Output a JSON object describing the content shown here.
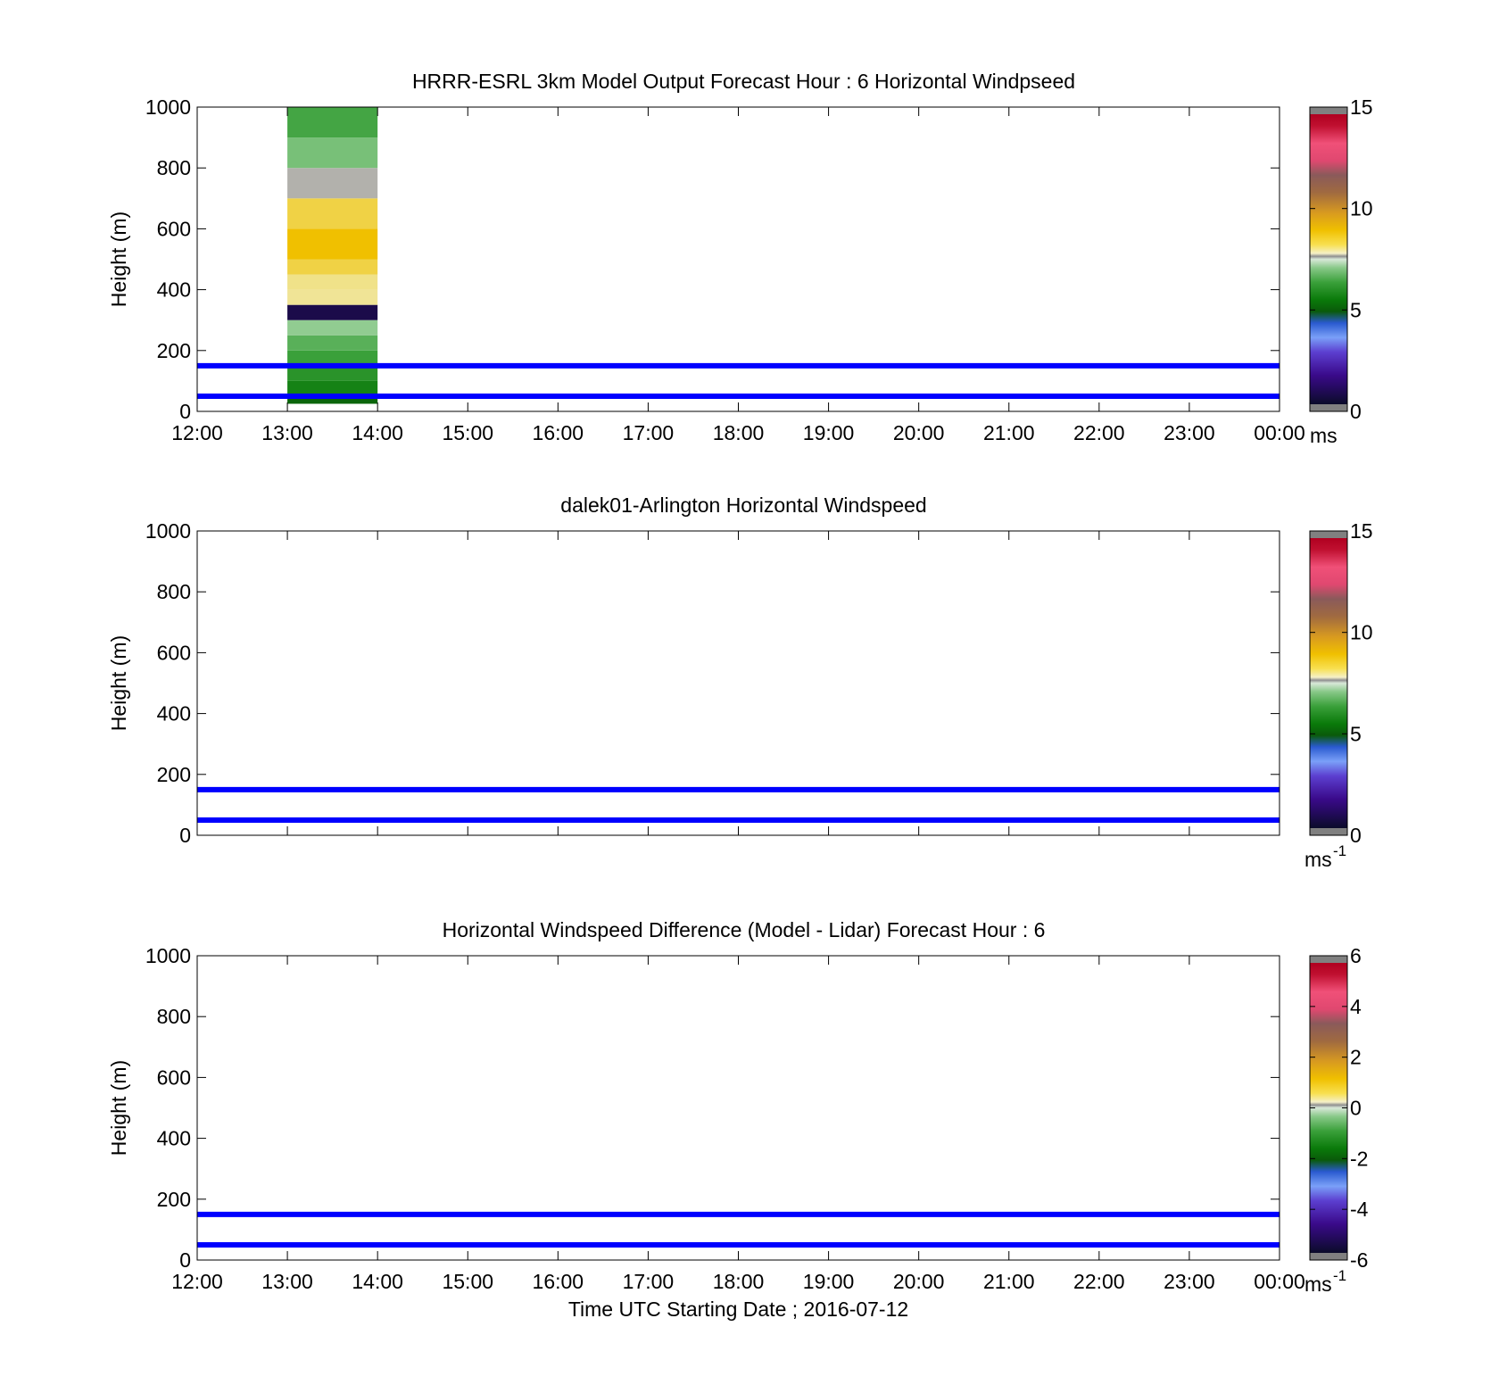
{
  "chart_data": [
    {
      "type": "heatmap",
      "title": "HRRR-ESRL 3km Model Output   Forecast Hour : 6 Horizontal Windpseed",
      "xlabel": "",
      "ylabel": "Height (m)",
      "x_ticks": [
        "12:00",
        "13:00",
        "14:00",
        "15:00",
        "16:00",
        "17:00",
        "18:00",
        "19:00",
        "20:00",
        "21:00",
        "22:00",
        "23:00",
        "00:00"
      ],
      "x_range_hours": [
        12,
        24
      ],
      "ylim": [
        0,
        1000
      ],
      "y_ticks": [
        0,
        200,
        400,
        600,
        800,
        1000
      ],
      "colorbar": {
        "range": [
          0,
          15
        ],
        "ticks": [
          0,
          5,
          10,
          15
        ],
        "label": "ms"
      },
      "cells": [
        {
          "x0": 13,
          "x1": 14,
          "y0": 25,
          "y1": 50,
          "value": 5.0
        },
        {
          "x0": 13,
          "x1": 14,
          "y0": 50,
          "y1": 100,
          "value": 5.6
        },
        {
          "x0": 13,
          "x1": 14,
          "y0": 100,
          "y1": 150,
          "value": 6.0
        },
        {
          "x0": 13,
          "x1": 14,
          "y0": 150,
          "y1": 200,
          "value": 6.3
        },
        {
          "x0": 13,
          "x1": 14,
          "y0": 200,
          "y1": 250,
          "value": 6.6
        },
        {
          "x0": 13,
          "x1": 14,
          "y0": 250,
          "y1": 300,
          "value": 7.1
        },
        {
          "x0": 13,
          "x1": 14,
          "y0": 300,
          "y1": 350,
          "value": 0.5
        },
        {
          "x0": 13,
          "x1": 14,
          "y0": 350,
          "y1": 400,
          "value": 8.1
        },
        {
          "x0": 13,
          "x1": 14,
          "y0": 400,
          "y1": 450,
          "value": 8.2
        },
        {
          "x0": 13,
          "x1": 14,
          "y0": 450,
          "y1": 500,
          "value": 8.6
        },
        {
          "x0": 13,
          "x1": 14,
          "y0": 500,
          "y1": 600,
          "value": 9.0
        },
        {
          "x0": 13,
          "x1": 14,
          "y0": 600,
          "y1": 700,
          "value": 8.6
        },
        {
          "x0": 13,
          "x1": 14,
          "y0": 700,
          "y1": 800,
          "value": 7.6
        },
        {
          "x0": 13,
          "x1": 14,
          "y0": 800,
          "y1": 900,
          "value": 6.9
        },
        {
          "x0": 13,
          "x1": 14,
          "y0": 900,
          "y1": 1000,
          "value": 6.4
        }
      ],
      "reference_lines_m": [
        50,
        150
      ]
    },
    {
      "type": "heatmap",
      "title": "dalek01-Arlington  Horizontal Windspeed",
      "xlabel": "",
      "ylabel": "Height (m)",
      "x_range_hours": [
        12,
        24
      ],
      "ylim": [
        0,
        1000
      ],
      "y_ticks": [
        0,
        200,
        400,
        600,
        800,
        1000
      ],
      "colorbar": {
        "range": [
          0,
          15
        ],
        "ticks": [
          0,
          5,
          10,
          15
        ],
        "label": "ms",
        "label_sup": "-1"
      },
      "cells": [],
      "reference_lines_m": [
        50,
        150
      ]
    },
    {
      "type": "heatmap",
      "title": "Horizontal Windspeed Difference (Model - Lidar) Forecast Hour : 6",
      "xlabel": "Time UTC  Starting Date ; 2016-07-12",
      "ylabel": "Height (m)",
      "x_ticks": [
        "12:00",
        "13:00",
        "14:00",
        "15:00",
        "16:00",
        "17:00",
        "18:00",
        "19:00",
        "20:00",
        "21:00",
        "22:00",
        "23:00",
        "00:00"
      ],
      "x_range_hours": [
        12,
        24
      ],
      "ylim": [
        0,
        1000
      ],
      "y_ticks": [
        0,
        200,
        400,
        600,
        800,
        1000
      ],
      "colorbar": {
        "range": [
          -6,
          6
        ],
        "ticks": [
          -6,
          -4,
          -2,
          0,
          2,
          4,
          6
        ],
        "label": "ms",
        "label_sup": "-1"
      },
      "cells": [],
      "reference_lines_m": [
        50,
        150
      ]
    }
  ],
  "colors": {
    "reference_line": "#0000ff",
    "colormap": [
      "#2a2a2a",
      "#0b0b3a",
      "#3a0a8a",
      "#5c3fd0",
      "#6a8cf0",
      "#2a5ad0",
      "#0a6a0a",
      "#1a8a1a",
      "#5cb85c",
      "#a8d8a8",
      "#f0f0f0",
      "#f5e17a",
      "#f0c000",
      "#d89a20",
      "#9a6a4a",
      "#c04060",
      "#f04070",
      "#c00020",
      "#404040"
    ]
  }
}
